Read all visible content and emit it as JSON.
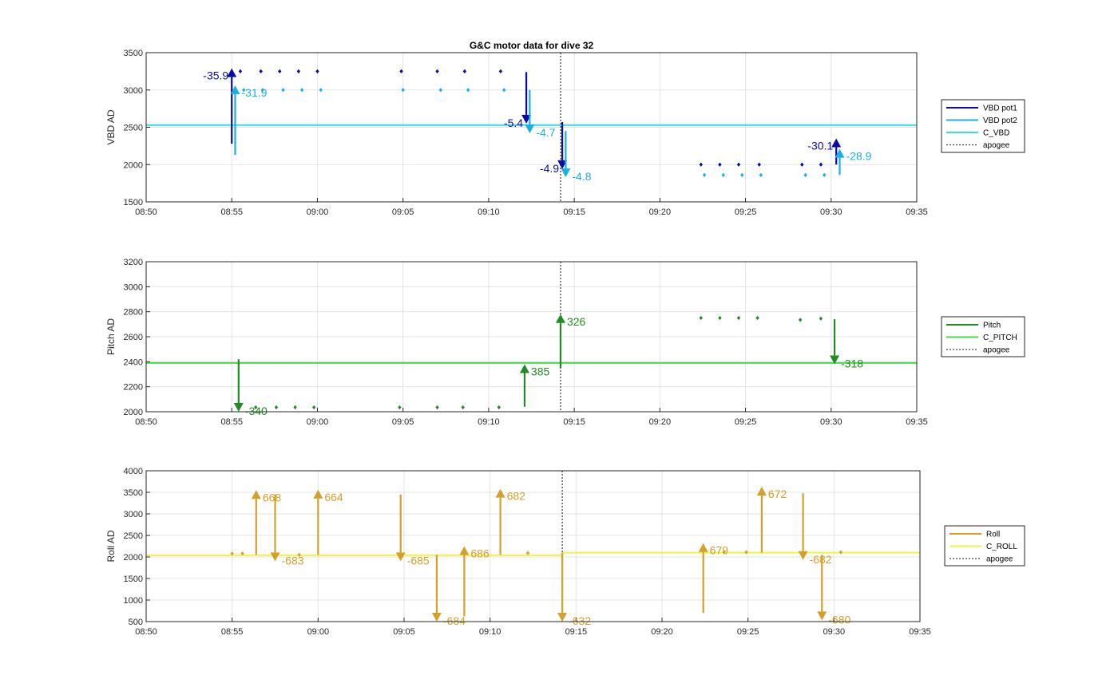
{
  "chart_data": [
    {
      "type": "line",
      "title": "G&C motor data for dive 32",
      "ylabel": "VBD AD",
      "xlim": [
        "08:50",
        "09:35"
      ],
      "ylim": [
        3500,
        1500
      ],
      "y_reversed": true,
      "x_ticks": [
        "08:50",
        "08:55",
        "09:00",
        "09:05",
        "09:10",
        "09:15",
        "09:20",
        "09:25",
        "09:30",
        "09:35"
      ],
      "y_ticks": [
        "1500",
        "2000",
        "2500",
        "3000",
        "3500"
      ],
      "grid": true,
      "legend": {
        "placement": "outside-right",
        "entries": [
          {
            "label": "VBD pot1",
            "color": "#0a0aa8",
            "style": "solid"
          },
          {
            "label": "VBD pot2",
            "color": "#1ab0e6",
            "style": "solid"
          },
          {
            "label": "C_VBD",
            "color": "#33dede",
            "style": "solid"
          },
          {
            "label": "apogee",
            "color": "#444444",
            "style": "dotted"
          }
        ]
      },
      "reference_lines": [
        {
          "name": "C_VBD",
          "y": 2530,
          "color": "#33dede"
        }
      ],
      "vlines": [
        {
          "name": "apogee",
          "x": "09:14.2",
          "color": "#444444"
        }
      ],
      "series": [
        {
          "name": "VBD pot1",
          "color": "#0a0aa8",
          "points": [
            [
              "08:55.5",
              3250
            ],
            [
              "08:56.7",
              3250
            ],
            [
              "08:57.8",
              3250
            ],
            [
              "08:58.9",
              3250
            ],
            [
              "09:00.0",
              3250
            ],
            [
              "09:04.9",
              3250
            ],
            [
              "09:07.0",
              3250
            ],
            [
              "09:08.6",
              3250
            ],
            [
              "09:10.7",
              3250
            ],
            [
              "09:22.4",
              2000
            ],
            [
              "09:23.5",
              2000
            ],
            [
              "09:24.6",
              2000
            ],
            [
              "09:25.8",
              2000
            ],
            [
              "09:28.3",
              2000
            ],
            [
              "09:29.4",
              2000
            ]
          ],
          "arrows": [
            {
              "x": "08:55.0",
              "y0": 2280,
              "y1": 3290,
              "label": "-35.9",
              "label_side": "left"
            },
            {
              "x": "09:12.2",
              "y0": 3240,
              "y1": 2550,
              "label": "-5.4",
              "label_side": "left"
            },
            {
              "x": "09:14.3",
              "y0": 2570,
              "y1": 1940,
              "label": "-4.9",
              "label_side": "left"
            },
            {
              "x": "09:30.3",
              "y0": 2000,
              "y1": 2350,
              "label": "-30.1",
              "label_side": "left"
            }
          ]
        },
        {
          "name": "VBD pot2",
          "color": "#1ab0e6",
          "points": [
            [
              "08:55.7",
              3000
            ],
            [
              "08:56.8",
              3000
            ],
            [
              "08:58.0",
              3000
            ],
            [
              "08:59.1",
              3000
            ],
            [
              "09:00.2",
              3000
            ],
            [
              "09:05.0",
              3000
            ],
            [
              "09:07.2",
              3000
            ],
            [
              "09:08.8",
              3000
            ],
            [
              "09:10.9",
              3000
            ],
            [
              "09:22.6",
              1860
            ],
            [
              "09:23.7",
              1860
            ],
            [
              "09:24.8",
              1860
            ],
            [
              "09:25.9",
              1860
            ],
            [
              "09:28.5",
              1860
            ],
            [
              "09:29.6",
              1860
            ]
          ],
          "arrows": [
            {
              "x": "08:55.2",
              "y0": 2130,
              "y1": 3060,
              "label": "-31.9",
              "label_side": "right"
            },
            {
              "x": "09:12.4",
              "y0": 3000,
              "y1": 2420,
              "label": "-4.7",
              "label_side": "right"
            },
            {
              "x": "09:14.5",
              "y0": 2450,
              "y1": 1830,
              "label": "-4.8",
              "label_side": "right"
            },
            {
              "x": "09:30.5",
              "y0": 1860,
              "y1": 2210,
              "label": "-28.9",
              "label_side": "right"
            }
          ]
        }
      ]
    },
    {
      "type": "line",
      "title": "",
      "ylabel": "Pitch AD",
      "xlim": [
        "08:50",
        "09:35"
      ],
      "ylim": [
        2000,
        3200
      ],
      "x_ticks": [
        "08:50",
        "08:55",
        "09:00",
        "09:05",
        "09:10",
        "09:15",
        "09:20",
        "09:25",
        "09:30",
        "09:35"
      ],
      "y_ticks": [
        "2000",
        "2200",
        "2400",
        "2600",
        "2800",
        "3000",
        "3200"
      ],
      "grid": true,
      "legend": {
        "placement": "outside-right",
        "entries": [
          {
            "label": "Pitch",
            "color": "#228b22",
            "style": "solid"
          },
          {
            "label": "C_PITCH",
            "color": "#44dd44",
            "style": "solid"
          },
          {
            "label": "apogee",
            "color": "#444444",
            "style": "dotted"
          }
        ]
      },
      "reference_lines": [
        {
          "name": "C_PITCH",
          "y": 2390,
          "color": "#44dd44"
        }
      ],
      "vlines": [
        {
          "name": "apogee",
          "x": "09:14.2",
          "color": "#444444"
        }
      ],
      "series": [
        {
          "name": "Pitch",
          "color": "#228b22",
          "points": [
            [
              "08:56.4",
              2035
            ],
            [
              "08:57.6",
              2035
            ],
            [
              "08:58.7",
              2035
            ],
            [
              "08:59.8",
              2035
            ],
            [
              "09:04.8",
              2035
            ],
            [
              "09:07.0",
              2035
            ],
            [
              "09:08.5",
              2035
            ],
            [
              "09:10.6",
              2035
            ],
            [
              "09:22.4",
              2750
            ],
            [
              "09:23.5",
              2750
            ],
            [
              "09:24.6",
              2750
            ],
            [
              "09:25.7",
              2750
            ],
            [
              "09:28.2",
              2735
            ],
            [
              "09:29.4",
              2745
            ]
          ],
          "arrows": [
            {
              "x": "08:55.4",
              "y0": 2420,
              "y1": 2000,
              "label": "-340",
              "label_side": "right"
            },
            {
              "x": "09:12.1",
              "y0": 2040,
              "y1": 2380,
              "label": "385",
              "label_side": "right"
            },
            {
              "x": "09:14.2",
              "y0": 2350,
              "y1": 2780,
              "label": "326",
              "label_side": "right"
            },
            {
              "x": "09:30.2",
              "y0": 2740,
              "y1": 2380,
              "label": "-318",
              "label_side": "right"
            }
          ]
        }
      ]
    },
    {
      "type": "line",
      "title": "",
      "ylabel": "Roll AD",
      "xlim": [
        "08:50",
        "09:35"
      ],
      "ylim": [
        500,
        4000
      ],
      "x_ticks": [
        "08:50",
        "08:55",
        "09:00",
        "09:05",
        "09:10",
        "09:15",
        "09:20",
        "09:25",
        "09:30",
        "09:35"
      ],
      "y_ticks": [
        "500",
        "1000",
        "1500",
        "2000",
        "2500",
        "3000",
        "3500",
        "4000"
      ],
      "grid": true,
      "legend": {
        "placement": "outside-right",
        "entries": [
          {
            "label": "Roll",
            "color": "#d4a02a",
            "style": "solid"
          },
          {
            "label": "C_ROLL",
            "color": "#f2f244",
            "style": "solid"
          },
          {
            "label": "apogee",
            "color": "#444444",
            "style": "dotted"
          }
        ]
      },
      "reference_lines": [
        {
          "name": "C_ROLL",
          "segments": [
            [
              "08:50",
              2040,
              "09:14.2",
              2040
            ],
            [
              "09:14.2",
              2100,
              "09:35",
              2100
            ]
          ],
          "color": "#f2f244"
        }
      ],
      "vlines": [
        {
          "name": "apogee",
          "x": "09:14.2",
          "color": "#444444"
        }
      ],
      "series": [
        {
          "name": "Roll",
          "color": "#d4a02a",
          "points": [
            [
              "08:55.0",
              2080
            ],
            [
              "08:55.6",
              2080
            ],
            [
              "08:58.9",
              2050
            ],
            [
              "09:12.2",
              2090
            ],
            [
              "09:23.6",
              2110
            ],
            [
              "09:24.9",
              2110
            ],
            [
              "09:30.4",
              2110
            ]
          ],
          "arrows": [
            {
              "x": "08:56.4",
              "y0": 2050,
              "y1": 3550,
              "label": "668",
              "label_side": "right"
            },
            {
              "x": "08:57.5",
              "y0": 3450,
              "y1": 1900,
              "label": "-683",
              "label_side": "right"
            },
            {
              "x": "09:00.0",
              "y0": 2050,
              "y1": 3560,
              "label": "664",
              "label_side": "right"
            },
            {
              "x": "09:04.8",
              "y0": 3450,
              "y1": 1900,
              "label": "-685",
              "label_side": "right"
            },
            {
              "x": "09:06.9",
              "y0": 2050,
              "y1": 500,
              "label": "-684",
              "label_side": "right"
            },
            {
              "x": "09:08.5",
              "y0": 620,
              "y1": 2250,
              "label": "686",
              "label_side": "right"
            },
            {
              "x": "09:10.6",
              "y0": 2050,
              "y1": 3580,
              "label": "682",
              "label_side": "right"
            },
            {
              "x": "09:14.2",
              "y0": 2100,
              "y1": 500,
              "label": "-632",
              "label_side": "right"
            },
            {
              "x": "09:22.4",
              "y0": 700,
              "y1": 2320,
              "label": "679",
              "label_side": "right"
            },
            {
              "x": "09:25.8",
              "y0": 2100,
              "y1": 3630,
              "label": "672",
              "label_side": "right"
            },
            {
              "x": "09:28.2",
              "y0": 3480,
              "y1": 1930,
              "label": "-682",
              "label_side": "right"
            },
            {
              "x": "09:29.3",
              "y0": 2050,
              "y1": 530,
              "label": "-680",
              "label_side": "right"
            }
          ]
        }
      ]
    }
  ]
}
